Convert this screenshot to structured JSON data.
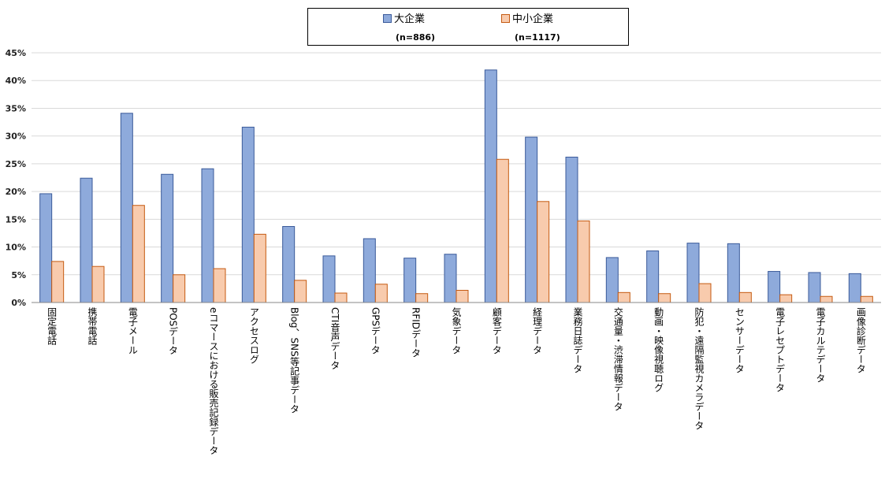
{
  "chart_data": {
    "type": "bar",
    "title": "",
    "xlabel": "",
    "ylabel": "",
    "ylim": [
      0,
      45
    ],
    "yticks": [
      "0%",
      "5%",
      "10%",
      "15%",
      "20%",
      "25%",
      "30%",
      "35%",
      "40%",
      "45%"
    ],
    "grid": true,
    "legend_position": "top",
    "categories": [
      "固定電話",
      "携帯電話",
      "電子メール",
      "POSデータ",
      "eコマースにおける販売記録データ",
      "アクセスログ",
      "Blog、SNS等記事データ",
      "CTI音声データ",
      "GPSデータ",
      "RFIDデータ",
      "気象データ",
      "顧客データ",
      "経理データ",
      "業務日誌データ",
      "交通量・渋滞情報データ",
      "動画・映像視聴ログ",
      "防犯・遠隔監視カメラデータ",
      "センサーデータ",
      "電子レセプトデータ",
      "電子カルテデータ",
      "画像診断データ"
    ],
    "series": [
      {
        "name": "大企業",
        "n_label": "(n=886)",
        "color": "#8eaadb",
        "stroke": "#3a5a9a",
        "values": [
          19.6,
          22.4,
          34.1,
          23.1,
          24.1,
          31.6,
          13.7,
          8.4,
          11.5,
          8.0,
          8.7,
          41.9,
          29.8,
          26.2,
          8.1,
          9.3,
          10.7,
          10.6,
          5.6,
          5.4,
          5.2
        ]
      },
      {
        "name": "中小企業",
        "n_label": "(n=1117)",
        "color": "#f8cbad",
        "stroke": "#c55a11",
        "values": [
          7.4,
          6.5,
          17.5,
          5.0,
          6.1,
          12.3,
          4.0,
          1.7,
          3.3,
          1.6,
          2.2,
          25.8,
          18.2,
          14.7,
          1.8,
          1.6,
          3.4,
          1.8,
          1.4,
          1.1,
          1.1
        ]
      }
    ]
  }
}
